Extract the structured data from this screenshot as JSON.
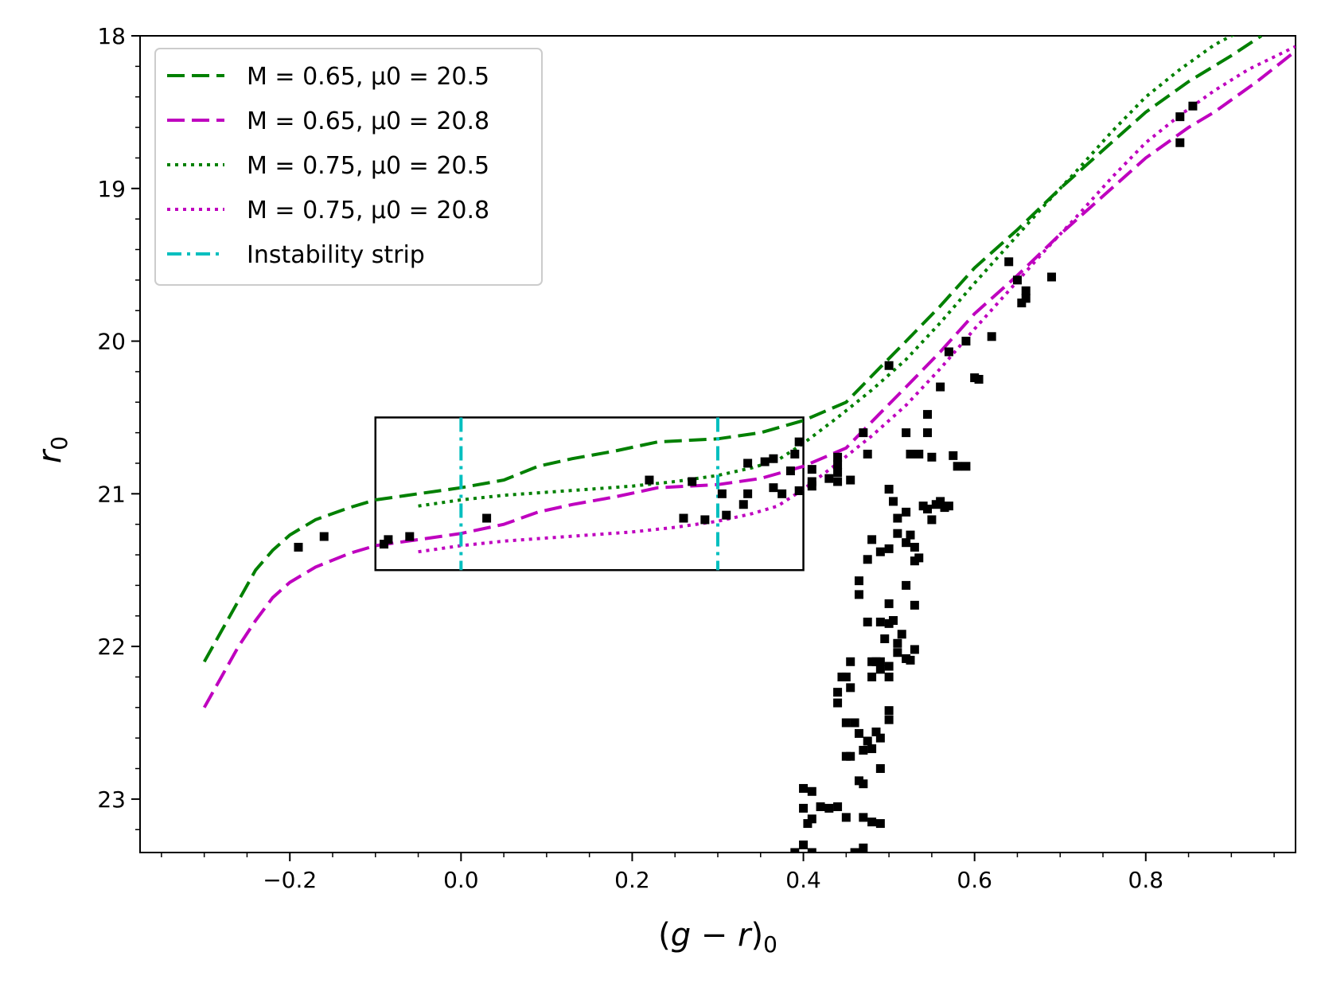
{
  "chart_data": {
    "type": "scatter",
    "xlabel": "(g − r)0",
    "ylabel": "r0",
    "xlim": [
      -0.375,
      0.975
    ],
    "ylim": [
      23.35,
      18.0
    ],
    "y_inverted": true,
    "xticks": [
      {
        "value": -0.2,
        "label": "−0.2"
      },
      {
        "value": 0.0,
        "label": "0.0"
      },
      {
        "value": 0.2,
        "label": "0.2"
      },
      {
        "value": 0.4,
        "label": "0.4"
      },
      {
        "value": 0.6,
        "label": "0.6"
      },
      {
        "value": 0.8,
        "label": "0.8"
      }
    ],
    "yticks": [
      {
        "value": 18,
        "label": "18"
      },
      {
        "value": 19,
        "label": "19"
      },
      {
        "value": 20,
        "label": "20"
      },
      {
        "value": 21,
        "label": "21"
      },
      {
        "value": 22,
        "label": "22"
      },
      {
        "value": 23,
        "label": "23"
      }
    ],
    "legend_position": "top-left",
    "legend": [
      {
        "name": "M = 0.65,  μ0 = 20.5",
        "color": "#008000",
        "style": "dashed"
      },
      {
        "name": "M = 0.65,  μ0 = 20.8",
        "color": "#bf00bf",
        "style": "dashed"
      },
      {
        "name": "M = 0.75,  μ0 = 20.5",
        "color": "#008000",
        "style": "dotted"
      },
      {
        "name": "M = 0.75,  μ0 = 20.8",
        "color": "#bf00bf",
        "style": "dotted"
      },
      {
        "name": "Instability strip",
        "color": "#00bfbf",
        "style": "dashdot"
      }
    ],
    "series": [
      {
        "name": "M = 0.65,  μ0 = 20.5",
        "color": "#008000",
        "style": "dashed",
        "points": [
          [
            -0.3,
            22.1
          ],
          [
            -0.28,
            21.9
          ],
          [
            -0.26,
            21.7
          ],
          [
            -0.24,
            21.5
          ],
          [
            -0.22,
            21.37
          ],
          [
            -0.2,
            21.27
          ],
          [
            -0.17,
            21.17
          ],
          [
            -0.13,
            21.09
          ],
          [
            -0.1,
            21.04
          ],
          [
            -0.05,
            21.0
          ],
          [
            0.0,
            20.96
          ],
          [
            0.05,
            20.91
          ],
          [
            0.09,
            20.82
          ],
          [
            0.13,
            20.77
          ],
          [
            0.18,
            20.72
          ],
          [
            0.23,
            20.66
          ],
          [
            0.3,
            20.64
          ],
          [
            0.35,
            20.6
          ],
          [
            0.4,
            20.52
          ],
          [
            0.45,
            20.4
          ],
          [
            0.49,
            20.17
          ],
          [
            0.52,
            20.0
          ],
          [
            0.56,
            19.77
          ],
          [
            0.6,
            19.52
          ],
          [
            0.65,
            19.27
          ],
          [
            0.7,
            19.0
          ],
          [
            0.75,
            18.75
          ],
          [
            0.8,
            18.5
          ],
          [
            0.85,
            18.3
          ],
          [
            0.9,
            18.13
          ],
          [
            0.935,
            18.0
          ]
        ]
      },
      {
        "name": "M = 0.65,  μ0 = 20.8",
        "color": "#bf00bf",
        "style": "dashed",
        "points": [
          [
            -0.3,
            22.4
          ],
          [
            -0.28,
            22.2
          ],
          [
            -0.26,
            22.0
          ],
          [
            -0.24,
            21.83
          ],
          [
            -0.22,
            21.68
          ],
          [
            -0.2,
            21.58
          ],
          [
            -0.17,
            21.48
          ],
          [
            -0.13,
            21.39
          ],
          [
            -0.1,
            21.34
          ],
          [
            -0.05,
            21.3
          ],
          [
            0.0,
            21.26
          ],
          [
            0.05,
            21.2
          ],
          [
            0.09,
            21.12
          ],
          [
            0.13,
            21.07
          ],
          [
            0.18,
            21.02
          ],
          [
            0.23,
            20.96
          ],
          [
            0.3,
            20.94
          ],
          [
            0.35,
            20.9
          ],
          [
            0.4,
            20.82
          ],
          [
            0.45,
            20.7
          ],
          [
            0.49,
            20.47
          ],
          [
            0.52,
            20.3
          ],
          [
            0.56,
            20.07
          ],
          [
            0.6,
            19.82
          ],
          [
            0.65,
            19.57
          ],
          [
            0.7,
            19.3
          ],
          [
            0.75,
            19.05
          ],
          [
            0.8,
            18.8
          ],
          [
            0.85,
            18.6
          ],
          [
            0.88,
            18.5
          ],
          [
            0.93,
            18.3
          ],
          [
            0.975,
            18.1
          ]
        ]
      },
      {
        "name": "M = 0.75,  μ0 = 20.5",
        "color": "#008000",
        "style": "dotted",
        "points": [
          [
            -0.05,
            21.08
          ],
          [
            0.0,
            21.04
          ],
          [
            0.05,
            21.01
          ],
          [
            0.1,
            20.99
          ],
          [
            0.15,
            20.97
          ],
          [
            0.2,
            20.95
          ],
          [
            0.25,
            20.92
          ],
          [
            0.3,
            20.88
          ],
          [
            0.34,
            20.83
          ],
          [
            0.37,
            20.78
          ],
          [
            0.4,
            20.67
          ],
          [
            0.44,
            20.5
          ],
          [
            0.48,
            20.32
          ],
          [
            0.52,
            20.12
          ],
          [
            0.56,
            19.88
          ],
          [
            0.6,
            19.62
          ],
          [
            0.64,
            19.37
          ],
          [
            0.68,
            19.12
          ],
          [
            0.72,
            18.88
          ],
          [
            0.76,
            18.63
          ],
          [
            0.8,
            18.4
          ],
          [
            0.84,
            18.22
          ],
          [
            0.88,
            18.06
          ],
          [
            0.91,
            17.97
          ]
        ]
      },
      {
        "name": "M = 0.75,  μ0 = 20.8",
        "color": "#bf00bf",
        "style": "dotted",
        "points": [
          [
            -0.05,
            21.38
          ],
          [
            0.0,
            21.34
          ],
          [
            0.05,
            21.31
          ],
          [
            0.1,
            21.29
          ],
          [
            0.15,
            21.27
          ],
          [
            0.2,
            21.25
          ],
          [
            0.25,
            21.22
          ],
          [
            0.3,
            21.18
          ],
          [
            0.34,
            21.13
          ],
          [
            0.37,
            21.08
          ],
          [
            0.4,
            20.97
          ],
          [
            0.44,
            20.8
          ],
          [
            0.48,
            20.62
          ],
          [
            0.52,
            20.42
          ],
          [
            0.56,
            20.18
          ],
          [
            0.6,
            19.92
          ],
          [
            0.64,
            19.67
          ],
          [
            0.68,
            19.42
          ],
          [
            0.72,
            19.18
          ],
          [
            0.76,
            18.93
          ],
          [
            0.8,
            18.7
          ],
          [
            0.84,
            18.52
          ],
          [
            0.88,
            18.36
          ],
          [
            0.92,
            18.22
          ],
          [
            0.975,
            18.07
          ]
        ]
      }
    ],
    "instability_strip": {
      "x": [
        0.0,
        0.3
      ],
      "y_range": [
        20.5,
        21.5
      ],
      "color": "#00bfbf"
    },
    "box": {
      "x_range": [
        -0.1,
        0.4
      ],
      "y_range": [
        20.5,
        21.5
      ]
    },
    "scatter": [
      [
        -0.19,
        21.35
      ],
      [
        -0.16,
        21.28
      ],
      [
        -0.09,
        21.33
      ],
      [
        -0.085,
        21.3
      ],
      [
        -0.06,
        21.28
      ],
      [
        0.03,
        21.16
      ],
      [
        0.22,
        20.91
      ],
      [
        0.27,
        20.92
      ],
      [
        0.26,
        21.16
      ],
      [
        0.285,
        21.17
      ],
      [
        0.305,
        21.0
      ],
      [
        0.31,
        21.14
      ],
      [
        0.33,
        21.07
      ],
      [
        0.335,
        20.8
      ],
      [
        0.335,
        21.0
      ],
      [
        0.355,
        20.79
      ],
      [
        0.365,
        20.77
      ],
      [
        0.365,
        20.96
      ],
      [
        0.375,
        21.0
      ],
      [
        0.385,
        20.85
      ],
      [
        0.39,
        20.74
      ],
      [
        0.395,
        20.66
      ],
      [
        0.395,
        20.98
      ],
      [
        0.41,
        20.84
      ],
      [
        0.41,
        20.95
      ],
      [
        0.41,
        20.92
      ],
      [
        0.43,
        20.9
      ],
      [
        0.44,
        20.76
      ],
      [
        0.44,
        20.81
      ],
      [
        0.44,
        20.86
      ],
      [
        0.44,
        20.92
      ],
      [
        0.455,
        20.91
      ],
      [
        0.47,
        20.6
      ],
      [
        0.475,
        20.74
      ],
      [
        0.5,
        20.16
      ],
      [
        0.52,
        20.6
      ],
      [
        0.525,
        20.74
      ],
      [
        0.535,
        20.74
      ],
      [
        0.545,
        20.6
      ],
      [
        0.55,
        20.76
      ],
      [
        0.545,
        20.48
      ],
      [
        0.56,
        20.3
      ],
      [
        0.57,
        20.07
      ],
      [
        0.575,
        20.75
      ],
      [
        0.58,
        20.82
      ],
      [
        0.59,
        20.82
      ],
      [
        0.59,
        20.0
      ],
      [
        0.6,
        20.24
      ],
      [
        0.605,
        20.25
      ],
      [
        0.62,
        19.97
      ],
      [
        0.64,
        19.48
      ],
      [
        0.65,
        19.6
      ],
      [
        0.655,
        19.75
      ],
      [
        0.66,
        19.72
      ],
      [
        0.66,
        19.67
      ],
      [
        0.69,
        19.58
      ],
      [
        0.84,
        18.53
      ],
      [
        0.84,
        18.7
      ],
      [
        0.855,
        18.46
      ],
      [
        0.5,
        20.97
      ],
      [
        0.505,
        21.05
      ],
      [
        0.51,
        21.16
      ],
      [
        0.52,
        21.12
      ],
      [
        0.525,
        21.27
      ],
      [
        0.53,
        21.35
      ],
      [
        0.535,
        21.42
      ],
      [
        0.54,
        21.08
      ],
      [
        0.545,
        21.1
      ],
      [
        0.55,
        21.17
      ],
      [
        0.555,
        21.07
      ],
      [
        0.56,
        21.05
      ],
      [
        0.565,
        21.09
      ],
      [
        0.57,
        21.08
      ],
      [
        0.475,
        21.43
      ],
      [
        0.48,
        21.3
      ],
      [
        0.49,
        21.38
      ],
      [
        0.5,
        21.36
      ],
      [
        0.51,
        21.26
      ],
      [
        0.52,
        21.32
      ],
      [
        0.53,
        21.44
      ],
      [
        0.465,
        21.57
      ],
      [
        0.465,
        21.66
      ],
      [
        0.475,
        21.84
      ],
      [
        0.49,
        21.84
      ],
      [
        0.5,
        21.85
      ],
      [
        0.505,
        21.83
      ],
      [
        0.51,
        21.98
      ],
      [
        0.515,
        21.92
      ],
      [
        0.52,
        21.6
      ],
      [
        0.53,
        21.73
      ],
      [
        0.5,
        21.72
      ],
      [
        0.495,
        21.95
      ],
      [
        0.485,
        22.1
      ],
      [
        0.49,
        22.1
      ],
      [
        0.48,
        22.1
      ],
      [
        0.49,
        22.15
      ],
      [
        0.5,
        22.13
      ],
      [
        0.51,
        22.04
      ],
      [
        0.52,
        22.08
      ],
      [
        0.525,
        22.09
      ],
      [
        0.53,
        22.02
      ],
      [
        0.48,
        22.2
      ],
      [
        0.5,
        22.2
      ],
      [
        0.455,
        22.1
      ],
      [
        0.45,
        22.2
      ],
      [
        0.445,
        22.2
      ],
      [
        0.44,
        22.3
      ],
      [
        0.455,
        22.27
      ],
      [
        0.44,
        22.37
      ],
      [
        0.45,
        22.5
      ],
      [
        0.46,
        22.5
      ],
      [
        0.465,
        22.57
      ],
      [
        0.485,
        22.56
      ],
      [
        0.49,
        22.6
      ],
      [
        0.48,
        22.67
      ],
      [
        0.5,
        22.42
      ],
      [
        0.5,
        22.48
      ],
      [
        0.45,
        22.72
      ],
      [
        0.455,
        22.72
      ],
      [
        0.47,
        22.68
      ],
      [
        0.475,
        22.62
      ],
      [
        0.49,
        22.8
      ],
      [
        0.465,
        22.88
      ],
      [
        0.47,
        22.9
      ],
      [
        0.44,
        23.05
      ],
      [
        0.43,
        23.06
      ],
      [
        0.4,
        22.93
      ],
      [
        0.41,
        22.95
      ],
      [
        0.4,
        23.06
      ],
      [
        0.405,
        23.16
      ],
      [
        0.41,
        23.13
      ],
      [
        0.42,
        23.05
      ],
      [
        0.45,
        23.12
      ],
      [
        0.47,
        23.12
      ],
      [
        0.48,
        23.15
      ],
      [
        0.49,
        23.16
      ],
      [
        0.4,
        23.3
      ],
      [
        0.39,
        23.35
      ],
      [
        0.41,
        23.35
      ],
      [
        0.46,
        23.35
      ],
      [
        0.47,
        23.32
      ]
    ]
  }
}
